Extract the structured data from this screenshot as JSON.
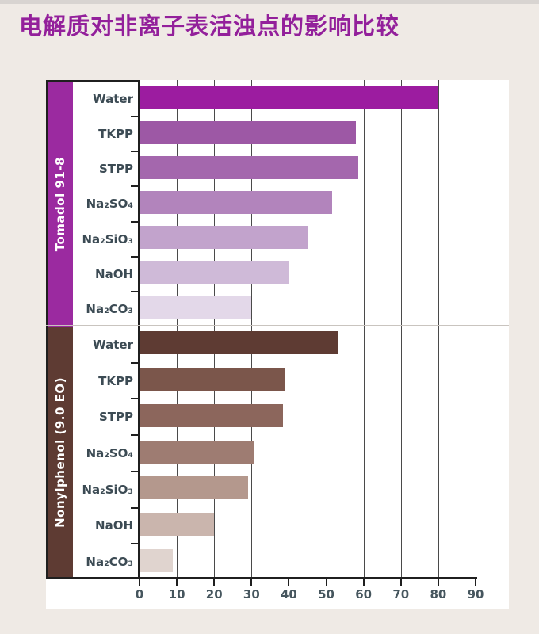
{
  "page": {
    "title": "电解质对非离子表活浊点的影响比较",
    "title_color": "#93209B",
    "background_color": "#EFEAE5"
  },
  "chart_data": {
    "type": "bar",
    "orientation": "horizontal",
    "title": "电解质对非离子表活浊点的影响比较",
    "xlabel": "",
    "ylabel": "",
    "xlim": [
      0,
      90
    ],
    "x_ticks": [
      0,
      10,
      20,
      30,
      40,
      50,
      60,
      70,
      80,
      90
    ],
    "grid": "vertical gridlines every 10, bars drawn over grid",
    "legend_position": "none",
    "plot_background": "#FFFFFF",
    "axis_color": "#1F1F1F",
    "axis_text_color": "#46565E",
    "category_text_color": "#3C4B54",
    "categories": [
      "Water",
      "TKPP",
      "STPP",
      "Na₂SO₄",
      "Na₂SiO₃",
      "NaOH",
      "Na₂CO₃"
    ],
    "series": [
      {
        "name": "Tomadol 91-8",
        "band_color": "#9B2AA0",
        "values": [
          80,
          58,
          58.5,
          51.5,
          45,
          40,
          30
        ],
        "bar_colors": [
          "#9C1CA0",
          "#9D58A5",
          "#A467AD",
          "#B284BC",
          "#C2A3CC",
          "#CFBAD8",
          "#E3D8E9"
        ]
      },
      {
        "name": "Nonylphenol (9.0 EO)",
        "band_color": "#5E3B33",
        "values": [
          53,
          39,
          38.5,
          30.5,
          29,
          20,
          9
        ],
        "bar_colors": [
          "#5E3B33",
          "#7B564B",
          "#8C665C",
          "#9E7C72",
          "#B4988D",
          "#CAB5AD",
          "#E0D4CF"
        ]
      }
    ]
  }
}
